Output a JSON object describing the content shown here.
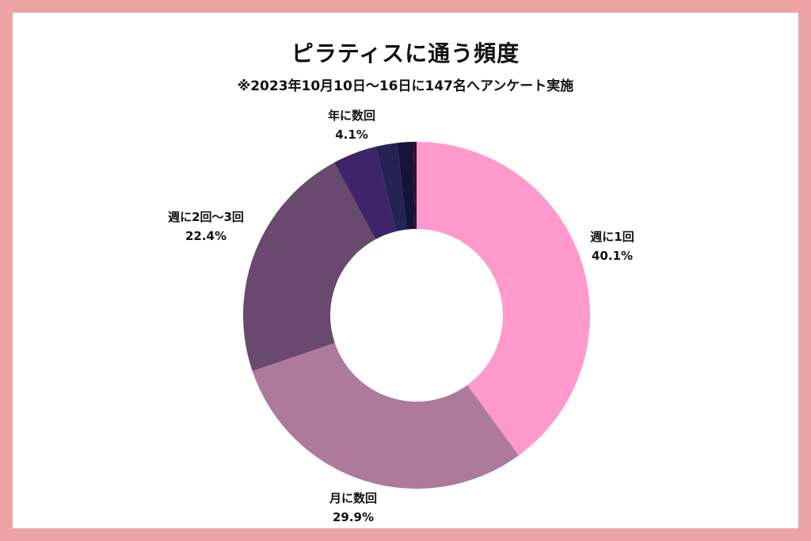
{
  "chart_data": {
    "type": "pie",
    "variant": "donut",
    "title": "ピラティスに通う頻度",
    "subtitle": "※2023年10月10日〜16日に147名へアンケート実施",
    "slices": [
      {
        "label": "週に1回",
        "value": 40.1,
        "value_label": "40.1%",
        "color": "#ff99cc"
      },
      {
        "label": "月に数回",
        "value": 29.9,
        "value_label": "29.9%",
        "color": "#ae7a9c"
      },
      {
        "label": "週に2回〜3回",
        "value": 22.4,
        "value_label": "22.4%",
        "color": "#69496e"
      },
      {
        "label": "年に数回",
        "value": 4.1,
        "value_label": "4.1%",
        "color": "#3e2468"
      },
      {
        "label": "",
        "value": 2.0,
        "value_label": "",
        "color": "#232454"
      },
      {
        "label": "",
        "value": 1.5,
        "value_label": "",
        "color": "#15133a"
      },
      {
        "label": "",
        "value": 0.3,
        "value_label": "",
        "color": "#3b0b2e"
      }
    ]
  },
  "colors": {
    "border": "#eda3a3",
    "background": "#ffffff"
  }
}
